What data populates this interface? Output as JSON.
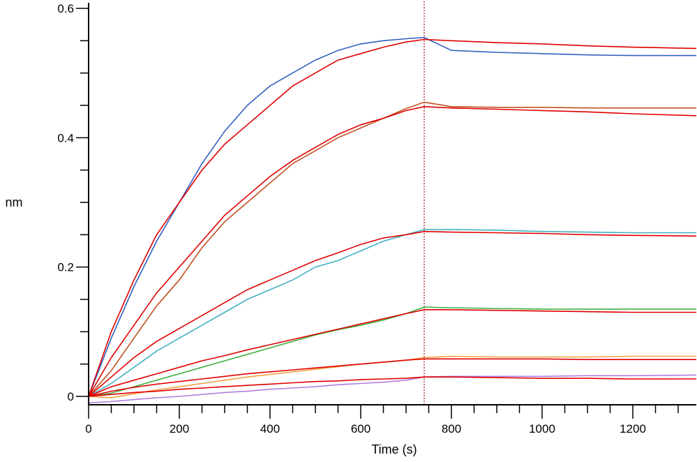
{
  "chart_data": {
    "type": "line",
    "title": "",
    "xlabel": "Time (s)",
    "ylabel": "nm",
    "xlim": [
      0,
      1340
    ],
    "ylim": [
      -0.015,
      0.605
    ],
    "x_ticks": [
      0,
      200,
      400,
      600,
      800,
      1000,
      1200
    ],
    "x_tick_labels": [
      "0",
      "200",
      "400",
      "600",
      "800",
      "1000",
      "1200"
    ],
    "y_ticks": [
      0,
      0.2,
      0.4,
      0.6
    ],
    "y_tick_labels": [
      "0",
      "0.2",
      "0.4",
      "0.6"
    ],
    "grid": false,
    "legend": "none",
    "marker_line": {
      "x": 740,
      "color": "#a01010",
      "style": "dotted"
    },
    "x": [
      0,
      50,
      100,
      150,
      200,
      250,
      300,
      350,
      400,
      450,
      500,
      550,
      600,
      650,
      700,
      740,
      800,
      900,
      1000,
      1100,
      1200,
      1340
    ],
    "fit_color": "#e00000",
    "series": [
      {
        "color": "#3060c0",
        "values": [
          0,
          0.09,
          0.17,
          0.24,
          0.3,
          0.36,
          0.41,
          0.45,
          0.48,
          0.5,
          0.52,
          0.535,
          0.545,
          0.55,
          0.553,
          0.555,
          0.535,
          0.532,
          0.53,
          0.528,
          0.527,
          0.527
        ],
        "fit": [
          0,
          0.1,
          0.18,
          0.25,
          0.3,
          0.35,
          0.39,
          0.42,
          0.45,
          0.48,
          0.5,
          0.52,
          0.53,
          0.54,
          0.548,
          0.552,
          0.55,
          0.547,
          0.545,
          0.542,
          0.54,
          0.538
        ]
      },
      {
        "color": "#c05020",
        "values": [
          0,
          0.04,
          0.09,
          0.14,
          0.18,
          0.23,
          0.27,
          0.3,
          0.33,
          0.36,
          0.38,
          0.4,
          0.415,
          0.43,
          0.445,
          0.455,
          0.448,
          0.447,
          0.447,
          0.446,
          0.446,
          0.446
        ],
        "fit": [
          0,
          0.06,
          0.11,
          0.16,
          0.2,
          0.24,
          0.28,
          0.31,
          0.34,
          0.365,
          0.385,
          0.405,
          0.42,
          0.43,
          0.442,
          0.448,
          0.446,
          0.444,
          0.442,
          0.44,
          0.437,
          0.434
        ]
      },
      {
        "color": "#40b0c0",
        "values": [
          0,
          0.02,
          0.045,
          0.07,
          0.09,
          0.11,
          0.13,
          0.15,
          0.165,
          0.18,
          0.2,
          0.21,
          0.225,
          0.24,
          0.25,
          0.258,
          0.258,
          0.257,
          0.255,
          0.254,
          0.253,
          0.253
        ],
        "fit": [
          0,
          0.03,
          0.06,
          0.085,
          0.105,
          0.125,
          0.145,
          0.165,
          0.18,
          0.195,
          0.21,
          0.222,
          0.235,
          0.245,
          0.25,
          0.255,
          0.254,
          0.253,
          0.252,
          0.25,
          0.249,
          0.248
        ]
      },
      {
        "color": "#40b040",
        "values": [
          0,
          0.005,
          0.015,
          0.025,
          0.035,
          0.045,
          0.055,
          0.065,
          0.075,
          0.085,
          0.095,
          0.103,
          0.11,
          0.118,
          0.128,
          0.138,
          0.137,
          0.136,
          0.135,
          0.135,
          0.135,
          0.135
        ],
        "fit": [
          0,
          0.015,
          0.025,
          0.035,
          0.045,
          0.055,
          0.063,
          0.072,
          0.08,
          0.088,
          0.096,
          0.104,
          0.112,
          0.12,
          0.128,
          0.134,
          0.134,
          0.133,
          0.132,
          0.131,
          0.13,
          0.13
        ]
      },
      {
        "color": "#f0a040",
        "values": [
          0,
          -0.002,
          0.004,
          0.01,
          0.015,
          0.02,
          0.025,
          0.03,
          0.034,
          0.038,
          0.042,
          0.046,
          0.05,
          0.053,
          0.056,
          0.06,
          0.062,
          0.061,
          0.061,
          0.061,
          0.062,
          0.062
        ],
        "fit": [
          0,
          0.008,
          0.014,
          0.019,
          0.023,
          0.027,
          0.031,
          0.035,
          0.038,
          0.041,
          0.044,
          0.047,
          0.05,
          0.053,
          0.056,
          0.058,
          0.058,
          0.058,
          0.058,
          0.057,
          0.057,
          0.057
        ]
      },
      {
        "color": "#b080e0",
        "values": [
          -0.01,
          -0.008,
          -0.005,
          -0.002,
          0,
          0.003,
          0.006,
          0.008,
          0.011,
          0.013,
          0.015,
          0.018,
          0.02,
          0.022,
          0.025,
          0.03,
          0.031,
          0.031,
          0.031,
          0.032,
          0.032,
          0.033
        ],
        "fit": [
          0,
          0.003,
          0.006,
          0.008,
          0.011,
          0.013,
          0.015,
          0.017,
          0.019,
          0.021,
          0.023,
          0.024,
          0.026,
          0.027,
          0.028,
          0.03,
          0.03,
          0.029,
          0.028,
          0.028,
          0.027,
          0.027
        ]
      }
    ]
  }
}
